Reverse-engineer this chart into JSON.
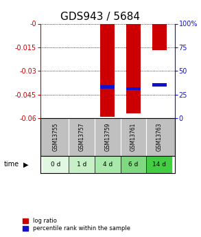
{
  "title": "GDS943 / 5684",
  "samples": [
    "GSM13755",
    "GSM13757",
    "GSM13759",
    "GSM13761",
    "GSM13763"
  ],
  "time_labels": [
    "0 d",
    "1 d",
    "4 d",
    "6 d",
    "14 d"
  ],
  "log_ratio": [
    0.0,
    0.0,
    -0.059,
    -0.057,
    -0.017
  ],
  "percentile_rank": [
    0.0,
    0.0,
    35.0,
    33.0,
    37.0
  ],
  "ylim_left": [
    -0.06,
    0.0
  ],
  "ylim_right": [
    0.0,
    100.0
  ],
  "yticks_left": [
    0.0,
    -0.015,
    -0.03,
    -0.045,
    -0.06
  ],
  "yticks_right": [
    0,
    25,
    50,
    75,
    100
  ],
  "bar_color_red": "#cc0000",
  "bar_color_blue": "#1111cc",
  "bg_color_plot": "#ffffff",
  "gsm_bg_color": "#c0c0c0",
  "time_bg_colors": [
    "#e0f8e0",
    "#c8f0c8",
    "#a8e8a8",
    "#80d880",
    "#44cc44"
  ],
  "title_fontsize": 11,
  "tick_fontsize": 7,
  "bar_width": 0.55,
  "legend_red": "log ratio",
  "legend_blue": "percentile rank within the sample",
  "left_axis_color": "#cc0000",
  "right_axis_color": "#1111cc"
}
